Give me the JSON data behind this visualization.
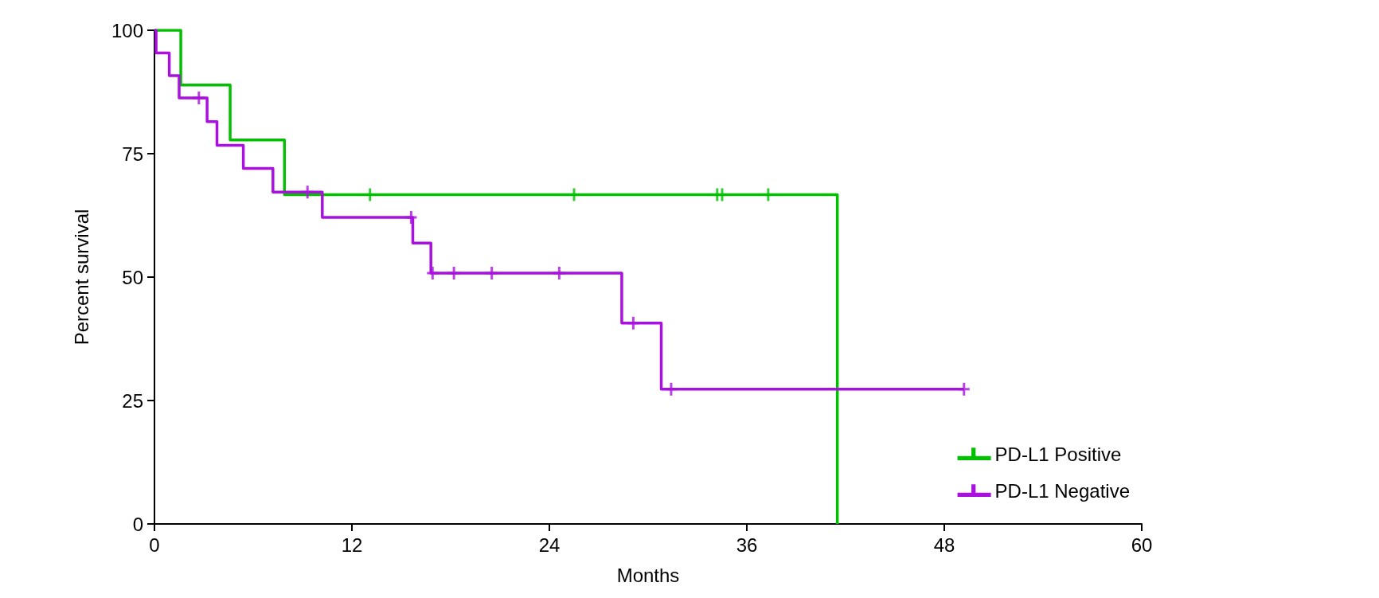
{
  "chart_data": {
    "type": "step",
    "xlabel": "Months",
    "ylabel": "Percent survival",
    "xlim": [
      0,
      60
    ],
    "xticks": [
      0,
      12,
      24,
      36,
      48,
      60
    ],
    "ylim": [
      0,
      100
    ],
    "yticks": [
      0,
      25,
      50,
      75,
      100
    ],
    "grid": false,
    "legend": "bottom right",
    "series": [
      {
        "name": "PD-L1 Positive",
        "color": "#00c000",
        "x": [
          0,
          1.6,
          4.6,
          7.9,
          41.5
        ],
        "values": [
          100,
          88.9,
          77.8,
          66.7,
          0
        ]
      },
      {
        "name": "PD-L1 Negative",
        "color": "#aa10e0",
        "x": [
          0,
          0.1,
          0.9,
          1.5,
          3.2,
          3.8,
          5.4,
          7.2,
          10.2,
          15.7,
          16.8,
          28.4,
          30.8,
          49.2
        ],
        "values": [
          100,
          95.4,
          90.8,
          86.3,
          81.5,
          76.7,
          72.0,
          67.2,
          62.1,
          56.9,
          50.8,
          40.7,
          27.3,
          27.3
        ]
      },
      {
        "type": "scatter",
        "color": "#00c000",
        "x": [
          13.1,
          25.5,
          34.2,
          34.5,
          37.3
        ],
        "values": [
          66.7,
          66.7,
          66.7,
          66.7,
          66.7
        ]
      },
      {
        "type": "scatter",
        "color": "#aa10e0",
        "x": [
          2.7,
          9.3,
          15.6,
          16.9,
          18.2,
          20.5,
          24.6,
          29.1,
          31.4,
          49.2
        ],
        "values": [
          86.3,
          67.2,
          62.1,
          50.8,
          50.8,
          50.8,
          50.8,
          40.7,
          27.3,
          27.3
        ]
      }
    ]
  }
}
